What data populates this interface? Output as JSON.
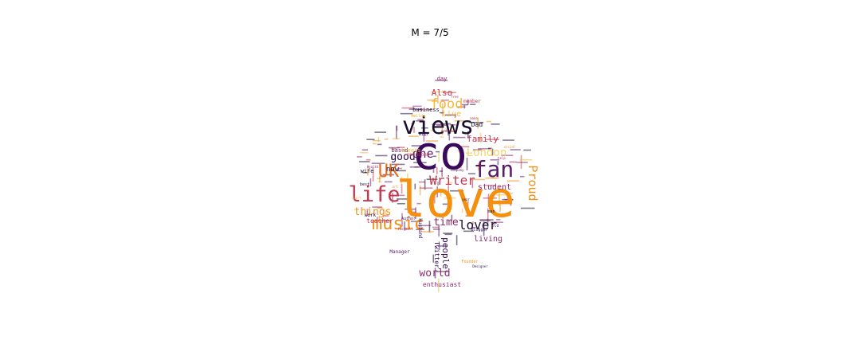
{
  "title": "M = 7/5",
  "colors": {
    "dark_purple": "#2d0b50",
    "deep_navy": "#1a0f2e",
    "magenta": "#8e2a6b",
    "red": "#c2384f",
    "orange": "#f19018",
    "gold": "#f6b83a",
    "pale_yellow": "#f7d26b"
  },
  "words": [
    {
      "text": "co",
      "color": "#3b0a5c"
    },
    {
      "text": "love",
      "color": "#f5900f"
    },
    {
      "text": "views",
      "color": "#1a0f2e"
    },
    {
      "text": "fan",
      "color": "#5a1a6b"
    },
    {
      "text": "life",
      "color": "#c2384f"
    },
    {
      "text": "UK",
      "color": "#e66a1c"
    },
    {
      "text": "music",
      "color": "#f19018"
    },
    {
      "text": "food",
      "color": "#f6b83a"
    },
    {
      "text": "Writer",
      "color": "#c2384f"
    },
    {
      "text": "lover",
      "color": "#1a0f2e"
    },
    {
      "text": "one",
      "color": "#5a1a6b"
    },
    {
      "text": "good",
      "color": "#2d0b50"
    },
    {
      "text": "Proud",
      "color": "#f19018"
    },
    {
      "text": "London",
      "color": "#f7d26b"
    },
    {
      "text": "world",
      "color": "#8e2a6b"
    },
    {
      "text": "time",
      "color": "#8e2a6b"
    },
    {
      "text": "things",
      "color": "#f19018"
    },
    {
      "text": "family",
      "color": "#c2384f"
    },
    {
      "text": "Also",
      "color": "#c2384f"
    },
    {
      "text": "student",
      "color": "#8e2a6b"
    },
    {
      "text": "people",
      "color": "#2d0b50"
    },
    {
      "text": "living",
      "color": "#8e2a6b"
    },
    {
      "text": "live",
      "color": "#f6b83a"
    },
    {
      "text": "now",
      "color": "#1a0f2e"
    },
    {
      "text": "Twitter",
      "color": "#2d0b50"
    },
    {
      "text": "enthusiast",
      "color": "#8e2a6b"
    },
    {
      "text": "teacher",
      "color": "#c2384f"
    },
    {
      "text": "business",
      "color": "#1a0f2e"
    },
    {
      "text": "based",
      "color": "#5a1a6b"
    },
    {
      "text": "Dad",
      "color": "#1a0f2e"
    },
    {
      "text": "day",
      "color": "#8e2a6b"
    },
    {
      "text": "member",
      "color": "#c2384f"
    },
    {
      "text": "wife",
      "color": "#1a0f2e"
    },
    {
      "text": "work",
      "color": "#2d0b50"
    },
    {
      "text": "Manager",
      "color": "#5a1a6b"
    },
    {
      "text": "Husband",
      "color": "#2d0b50"
    },
    {
      "text": "Author",
      "color": "#5a1a6b"
    },
    {
      "text": "follow",
      "color": "#f6b83a"
    },
    {
      "text": "Founder",
      "color": "#f19018"
    },
    {
      "text": "Blogger",
      "color": "#2d0b50"
    },
    {
      "text": "best",
      "color": "#1a0f2e"
    },
    {
      "text": "old",
      "color": "#5a1a6b"
    },
    {
      "text": "Designer",
      "color": "#2d0b50"
    },
    {
      "text": "football",
      "color": "#8e2a6b"
    },
    {
      "text": "free",
      "color": "#c2384f"
    },
    {
      "text": "will",
      "color": "#2d0b50"
    },
    {
      "text": "tweets",
      "color": "#f6b83a"
    },
    {
      "text": "man",
      "color": "#1a0f2e"
    },
    {
      "text": "opinions",
      "color": "#c2384f"
    },
    {
      "text": "company",
      "color": "#5a1a6b"
    },
    {
      "text": "Health",
      "color": "#8e2a6b"
    },
    {
      "text": "social",
      "color": "#f19018"
    },
    {
      "text": "make",
      "color": "#c2384f"
    },
    {
      "text": "new",
      "color": "#f19018"
    },
    {
      "text": "sport",
      "color": "#f6b83a"
    },
    {
      "text": "media",
      "color": "#8e2a6b"
    },
    {
      "text": "help",
      "color": "#c2384f"
    },
    {
      "text": "year",
      "color": "#2d0b50"
    },
    {
      "text": "art",
      "color": "#f19018"
    }
  ]
}
